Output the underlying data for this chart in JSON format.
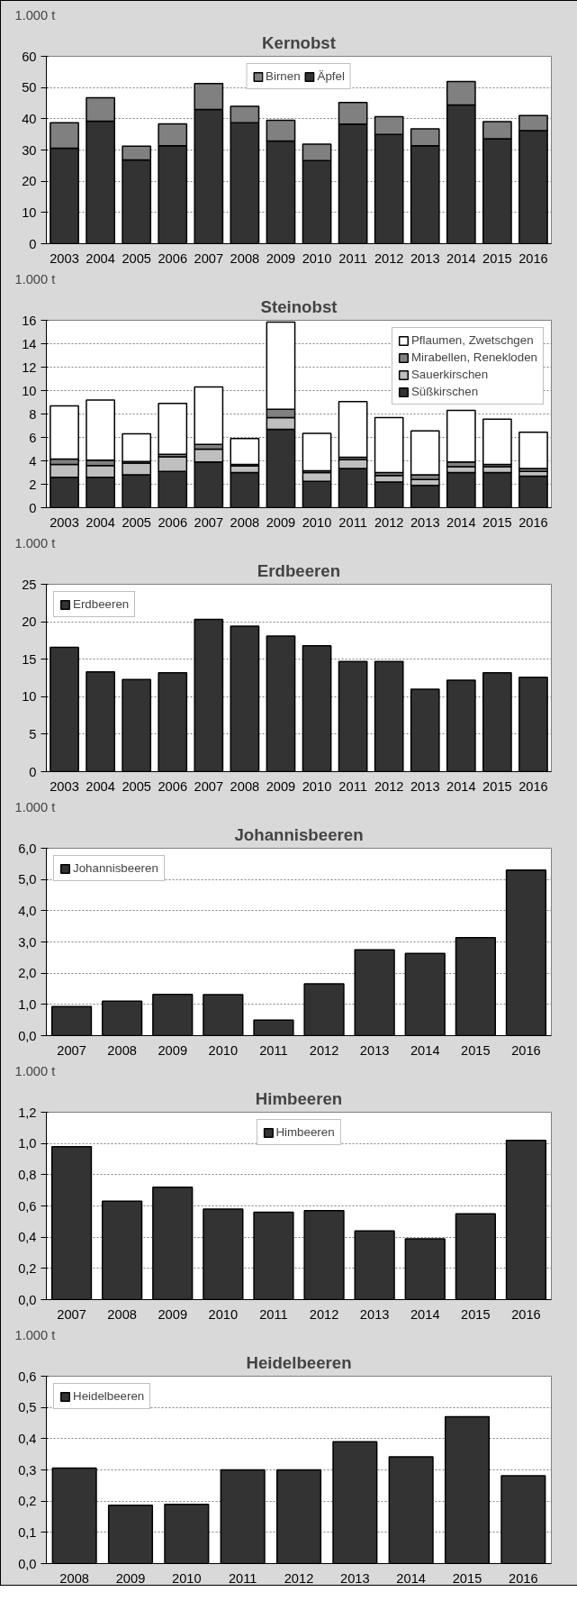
{
  "chart_data": [
    {
      "type": "bar",
      "title": "Kernobst",
      "ylabel": "1.000 t",
      "stacked": true,
      "categories": [
        "2003",
        "2004",
        "2005",
        "2006",
        "2007",
        "2008",
        "2009",
        "2010",
        "2011",
        "2012",
        "2013",
        "2014",
        "2015",
        "2016"
      ],
      "series": [
        {
          "name": "Äpfel",
          "color": "#333333",
          "values": [
            30.6,
            39.2,
            26.8,
            31.4,
            43.0,
            38.7,
            32.9,
            26.6,
            38.3,
            35.0,
            31.4,
            44.4,
            33.6,
            36.2
          ]
        },
        {
          "name": "Birnen",
          "color": "#808080",
          "values": [
            8.1,
            7.5,
            4.4,
            7.0,
            8.3,
            5.3,
            6.6,
            5.3,
            6.9,
            5.7,
            5.4,
            7.5,
            5.5,
            4.8
          ]
        }
      ],
      "ylim": [
        0,
        60
      ],
      "yticks": [
        0,
        10,
        20,
        30,
        40,
        50,
        60
      ],
      "grid": "y",
      "legend": "top"
    },
    {
      "type": "bar",
      "title": "Steinobst",
      "ylabel": "1.000 t",
      "stacked": true,
      "categories": [
        "2003",
        "2004",
        "2005",
        "2006",
        "2007",
        "2008",
        "2009",
        "2010",
        "2011",
        "2012",
        "2013",
        "2014",
        "2015",
        "2016"
      ],
      "series": [
        {
          "name": "Süßkirschen",
          "color": "#333333",
          "values": [
            2.6,
            2.6,
            2.8,
            3.1,
            3.9,
            3.0,
            6.7,
            2.25,
            3.35,
            2.2,
            1.9,
            3.0,
            3.0,
            2.7
          ]
        },
        {
          "name": "Sauerkirschen",
          "color": "#bfbfbf",
          "values": [
            1.1,
            1.0,
            1.0,
            1.25,
            1.1,
            0.55,
            1.0,
            0.75,
            0.75,
            0.55,
            0.5,
            0.5,
            0.5,
            0.4
          ]
        },
        {
          "name": "Mirabellen, Renekloden",
          "color": "#808080",
          "values": [
            0.45,
            0.45,
            0.15,
            0.2,
            0.4,
            0.15,
            0.7,
            0.15,
            0.2,
            0.25,
            0.4,
            0.4,
            0.2,
            0.25
          ]
        },
        {
          "name": "Pflaumen, Zwetschgen",
          "color": "#ffffff",
          "values": [
            4.55,
            5.15,
            2.35,
            4.35,
            4.9,
            2.2,
            7.45,
            3.2,
            4.75,
            4.7,
            3.75,
            4.4,
            3.85,
            3.1
          ]
        }
      ],
      "ylim": [
        0,
        16
      ],
      "yticks": [
        0,
        2,
        4,
        6,
        8,
        10,
        12,
        14,
        16
      ],
      "grid": "y",
      "legend": "top right"
    },
    {
      "type": "bar",
      "title": "Erdbeeren",
      "ylabel": "1.000 t",
      "categories": [
        "2003",
        "2004",
        "2005",
        "2006",
        "2007",
        "2008",
        "2009",
        "2010",
        "2011",
        "2012",
        "2013",
        "2014",
        "2015",
        "2016"
      ],
      "series": [
        {
          "name": "Erdbeeren",
          "color": "#333333",
          "values": [
            16.6,
            13.3,
            12.3,
            13.2,
            20.3,
            19.4,
            18.1,
            16.8,
            14.7,
            14.7,
            11.0,
            12.2,
            13.2,
            12.6
          ]
        }
      ],
      "ylim": [
        0,
        25
      ],
      "yticks": [
        0,
        5,
        10,
        15,
        20,
        25
      ],
      "grid": "y",
      "legend": "top left"
    },
    {
      "type": "bar",
      "title": "Johannisbeeren",
      "ylabel": "1.000 t",
      "categories": [
        "2007",
        "2008",
        "2009",
        "2010",
        "2011",
        "2012",
        "2013",
        "2014",
        "2015",
        "2016"
      ],
      "series": [
        {
          "name": "Johannisbeeren",
          "color": "#333333",
          "values": [
            0.93,
            1.1,
            1.32,
            1.31,
            0.5,
            1.66,
            2.75,
            2.63,
            3.14,
            5.3
          ]
        }
      ],
      "ylim": [
        0,
        6
      ],
      "yticks": [
        {
          "value": 0,
          "label": "0,0"
        },
        {
          "value": 1,
          "label": "1,0"
        },
        {
          "value": 2,
          "label": "2,0"
        },
        {
          "value": 3,
          "label": "3,0"
        },
        {
          "value": 4,
          "label": "4,0"
        },
        {
          "value": 5,
          "label": "5,0"
        },
        {
          "value": 6,
          "label": "6,0"
        }
      ],
      "grid": "y",
      "legend": "top left"
    },
    {
      "type": "bar",
      "title": "Himbeeren",
      "ylabel": "1.000 t",
      "categories": [
        "2007",
        "2008",
        "2009",
        "2010",
        "2011",
        "2012",
        "2013",
        "2014",
        "2015",
        "2016"
      ],
      "series": [
        {
          "name": "Himbeeren",
          "color": "#333333",
          "values": [
            0.98,
            0.63,
            0.72,
            0.58,
            0.56,
            0.57,
            0.44,
            0.39,
            0.55,
            1.02
          ]
        }
      ],
      "ylim": [
        0,
        1.2
      ],
      "yticks": [
        {
          "value": 0,
          "label": "0,0"
        },
        {
          "value": 0.2,
          "label": "0,2"
        },
        {
          "value": 0.4,
          "label": "0,4"
        },
        {
          "value": 0.6,
          "label": "0,6"
        },
        {
          "value": 0.8,
          "label": "0,8"
        },
        {
          "value": 1.0,
          "label": "1,0"
        },
        {
          "value": 1.2,
          "label": "1,2"
        }
      ],
      "grid": "y",
      "legend": "top"
    },
    {
      "type": "bar",
      "title": "Heidelbeeren",
      "ylabel": "1.000 t",
      "categories": [
        "2008",
        "2009",
        "2010",
        "2011",
        "2012",
        "2013",
        "2014",
        "2015",
        "2016"
      ],
      "series": [
        {
          "name": "Heidelbeeren",
          "color": "#333333",
          "values": [
            0.306,
            0.187,
            0.19,
            0.3,
            0.3,
            0.39,
            0.342,
            0.47,
            0.281
          ]
        }
      ],
      "ylim": [
        0,
        0.6
      ],
      "yticks": [
        {
          "value": 0,
          "label": "0,0"
        },
        {
          "value": 0.1,
          "label": "0,1"
        },
        {
          "value": 0.2,
          "label": "0,2"
        },
        {
          "value": 0.3,
          "label": "0,3"
        },
        {
          "value": 0.4,
          "label": "0,4"
        },
        {
          "value": 0.5,
          "label": "0,5"
        },
        {
          "value": 0.6,
          "label": "0,6"
        }
      ],
      "grid": "y",
      "legend": "top left"
    }
  ]
}
